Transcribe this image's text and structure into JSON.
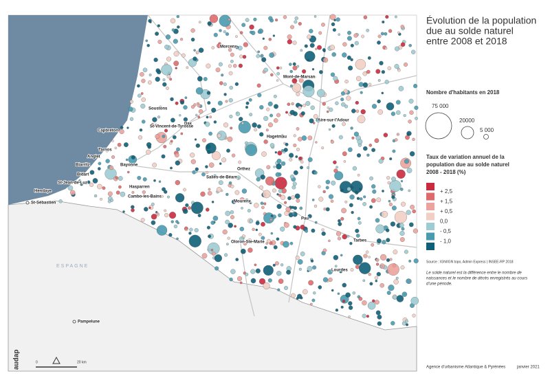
{
  "title": [
    "Évolution de la population",
    "due au solde naturel",
    "entre 2008 et 2018"
  ],
  "size_legend": {
    "title": "Nombre d'habitants en 2018",
    "labels": [
      "75 000",
      "20000",
      "5 000"
    ]
  },
  "color_legend": {
    "title": [
      "Taux de variation annuel de la",
      "population due au solde naturel",
      "2008 - 2018 (%)"
    ],
    "colors": [
      "#c92a3e",
      "#df6a6c",
      "#eca39d",
      "#f2cfc4",
      "#9fcbd3",
      "#4a9bb0",
      "#0f5f78"
    ],
    "labels": [
      "+ 2,5",
      "+ 1,5",
      "+ 0,5",
      "0,0",
      "- 0,5",
      "- 1,0"
    ]
  },
  "source": "Source : IGN/IGN topo, Admin Express | INSEE-RP 2018",
  "note": [
    "Le solde naturel est la différence entre le nombre de",
    "naissances et le nombre de décès enregistrés au cours",
    "d'une période."
  ],
  "places": [
    "Morcenx",
    "Mont-de-Marsan",
    "Soustons",
    "Dax",
    "Capbreton",
    "St-Vincent-de-Tyrosse",
    "Aire-sur-l'Adour",
    "Hagetmau",
    "Tarnos",
    "Anglet",
    "Biarritz",
    "Bayonne",
    "Orthez",
    "Salies-de-Béarn",
    "Bidart",
    "St-Jean-de-Luz",
    "Hendaye",
    "Hasparren",
    "Cambo-les-Bains",
    "Mourenx",
    "Pau",
    "Oloron-Ste-Marie",
    "Tarbes",
    "Lourdes",
    "St-Sébastien",
    "Pampelune"
  ],
  "country": "ESPAGNE",
  "scale": {
    "zero": "0",
    "length": "20 km"
  },
  "logo": "audap",
  "footer": {
    "agency": "Agence d'urbanisme Atlantique & Pyrénées",
    "date": "janvier 2021"
  }
}
